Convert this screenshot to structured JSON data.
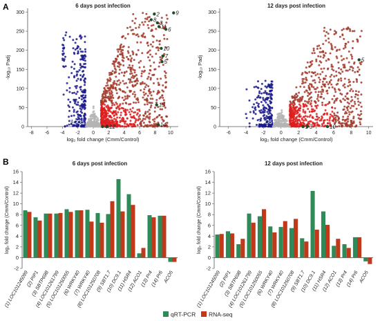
{
  "figure": {
    "panel_a_letter": "A",
    "panel_b_letter": "B",
    "legend": [
      {
        "label": "qRT-PCR",
        "color": "#2e8b57"
      },
      {
        "label": "RNA-seq",
        "color": "#c0391b"
      }
    ]
  },
  "colors": {
    "down": "#1a1a8c",
    "up": "#dd1f1f",
    "up_dark": "#a33a2a",
    "ns": "#b4b4b4",
    "highlight": "#1f4d2a",
    "qpcr": "#2e8b57",
    "rnaseq": "#c0391b"
  },
  "chart_data": [
    {
      "type": "scatter",
      "title": "6 days post infection",
      "xlabel": "log₂ fold change (Cmm/Control)",
      "ylabel": "-log₁₀ Padj",
      "xlim": [
        -8.5,
        11
      ],
      "ylim": [
        0,
        310
      ],
      "xticks": [
        -8,
        -6,
        -4,
        -2,
        0,
        2,
        4,
        6,
        8,
        10
      ],
      "yticks": [
        0,
        50,
        100,
        150,
        200,
        250,
        300
      ],
      "series_note": "down-regulated (blue), not significant (grey), up-regulated (red)",
      "highlighted": [
        {
          "label": "2",
          "x": 7.9,
          "y": 295
        },
        {
          "label": "8",
          "x": 7.5,
          "y": 280
        },
        {
          "label": "9",
          "x": 10.4,
          "y": 298
        },
        {
          "label": "3",
          "x": 8.3,
          "y": 272
        },
        {
          "label": "11",
          "x": 8.5,
          "y": 262
        },
        {
          "label": "6",
          "x": 9.4,
          "y": 255
        },
        {
          "label": "10",
          "x": 8.8,
          "y": 205
        },
        {
          "label": "7",
          "x": 9.0,
          "y": 185
        },
        {
          "label": "5",
          "x": 8.9,
          "y": 170
        },
        {
          "label": "13",
          "x": 8.2,
          "y": 57
        },
        {
          "label": "14",
          "x": 8.4,
          "y": 5
        },
        {
          "label": "ACO5",
          "x": -1.6,
          "y": 5
        },
        {
          "label": "12",
          "x": 1.8,
          "y": 0
        },
        {
          "label": "4",
          "x": 1.2,
          "y": 0
        }
      ]
    },
    {
      "type": "scatter",
      "title": "12 days post infection",
      "xlabel": "log₂ fold change (Cmm/Control)",
      "ylabel": "-log₁₀ Padj",
      "xlim": [
        -7,
        10.5
      ],
      "ylim": [
        0,
        310
      ],
      "xticks": [
        -6,
        -4,
        -2,
        0,
        2,
        4,
        6,
        8,
        10
      ],
      "yticks": [
        0,
        50,
        100,
        150,
        200,
        250,
        300
      ],
      "highlighted": [
        {
          "label": "5",
          "x": 8.9,
          "y": 175
        },
        {
          "label": "ACO5",
          "x": -1.4,
          "y": 5
        },
        {
          "label": "1",
          "x": 2.5,
          "y": 0
        },
        {
          "label": "3",
          "x": 3.0,
          "y": -5
        },
        {
          "label": "10",
          "x": 5.3,
          "y": 0
        }
      ]
    },
    {
      "type": "bar",
      "title": "6 days post infection",
      "ylabel": "log₂ fold change (Cmm/Control)",
      "ylim": [
        -2,
        16
      ],
      "yticks": [
        -2,
        0,
        2,
        4,
        6,
        8,
        10,
        12,
        14,
        16
      ],
      "categories": [
        "(1) LOC101245099",
        "(2) PIP1",
        "(3) SBTP69B",
        "(4) LOC101261799",
        "(5) LOC101250055",
        "(6) WRKY40",
        "(7) WRKY40",
        "(8) LOC101250708",
        "(9) SBT1.7",
        "(10) DC9.1",
        "(11) HSR4",
        "(12) ACO1",
        "(13) Pr4",
        "(14) Pr6",
        "ACO5"
      ],
      "series": [
        {
          "name": "qRT-PCR",
          "values": [
            8.8,
            7.5,
            8.2,
            8.2,
            9.0,
            8.8,
            8.9,
            8.3,
            8.1,
            14.6,
            11.8,
            0.8,
            7.9,
            7.8,
            -0.8
          ]
        },
        {
          "name": "RNA-seq",
          "values": [
            8.5,
            6.9,
            8.2,
            8.3,
            8.5,
            8.8,
            6.7,
            6.5,
            10.5,
            8.6,
            9.8,
            1.8,
            7.5,
            7.8,
            -0.8
          ]
        }
      ]
    },
    {
      "type": "bar",
      "title": "12 days post infection",
      "ylabel": "log₂ fold change (Cmm/Control)",
      "ylim": [
        -2,
        16
      ],
      "yticks": [
        -2,
        0,
        2,
        4,
        6,
        8,
        10,
        12,
        14,
        16
      ],
      "categories": [
        "(1) LOC101245099",
        "(2) PIP1",
        "(3) SBTP69B",
        "(4) LOC101261799",
        "(5) LOC101250055",
        "(6) WRKY40",
        "(7) WRKY40",
        "(8) LOC101250708",
        "(9) SBT1.7",
        "(10) DC9.1",
        "(11) HSR4",
        "(12) ACO1",
        "(13) Pr4",
        "(14) Pr6",
        "ACO5"
      ],
      "series": [
        {
          "name": "qRT-PCR",
          "values": [
            4.3,
            4.9,
            2.5,
            8.2,
            7.7,
            5.8,
            5.7,
            5.5,
            3.6,
            12.4,
            8.6,
            2.2,
            2.5,
            3.8,
            -0.7
          ]
        },
        {
          "name": "RNA-seq",
          "values": [
            4.4,
            4.5,
            3.5,
            6.5,
            9.0,
            4.7,
            6.8,
            7.2,
            3.0,
            5.2,
            6.1,
            3.5,
            1.8,
            3.8,
            -1.2
          ]
        }
      ]
    }
  ]
}
